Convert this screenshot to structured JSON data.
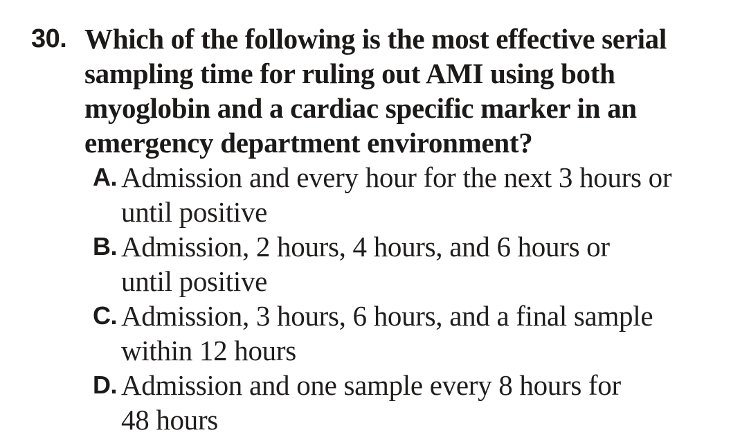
{
  "page": {
    "background_color": "#ffffff",
    "ink_color": "#1c1a19"
  },
  "question": {
    "number": "30.",
    "lines": [
      "Which of the following is the most effective serial",
      "sampling time for ruling out AMI using both",
      "myoglobin and a cardiac specific marker in an",
      "emergency department environment?"
    ]
  },
  "options": [
    {
      "letter": "A.",
      "lines": [
        "Admission and every hour for the next 3 hours or",
        "until positive"
      ]
    },
    {
      "letter": "B.",
      "lines": [
        "Admission, 2 hours, 4 hours, and 6 hours or",
        "until positive"
      ]
    },
    {
      "letter": "C.",
      "lines": [
        "Admission, 3 hours, 6 hours, and a final sample",
        "within 12 hours"
      ]
    },
    {
      "letter": "D.",
      "lines": [
        "Admission and one sample every 8 hours for",
        "48 hours"
      ]
    }
  ]
}
